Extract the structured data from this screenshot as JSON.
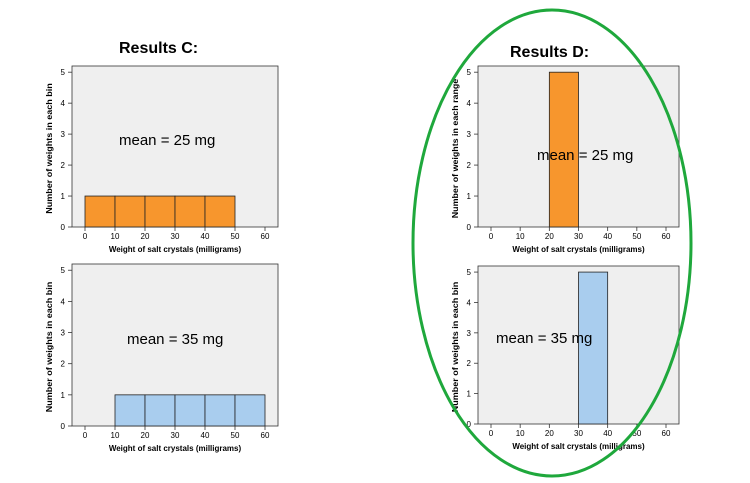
{
  "results_c_title": "Results  C:",
  "results_d_title": "Results  D:",
  "highlight_color": "#1fa83c",
  "colors": {
    "orange": "#f7962d",
    "blue": "#a9cdee",
    "plot_bg": "#efefef"
  },
  "chart_data": [
    {
      "type": "bar",
      "group": "C",
      "xlabel": "Weight of salt crystals (milligrams)",
      "ylabel": "Number of weights in each bin",
      "x_ticks": [
        "0",
        "10",
        "20",
        "30",
        "40",
        "50",
        "60"
      ],
      "y_ticks": [
        "0",
        "1",
        "2",
        "3",
        "4",
        "5"
      ],
      "xlim": [
        0,
        60
      ],
      "ylim": [
        0,
        5.2
      ],
      "bins": [
        {
          "x0": 0,
          "x1": 10,
          "count": 1
        },
        {
          "x0": 10,
          "x1": 20,
          "count": 1
        },
        {
          "x0": 20,
          "x1": 30,
          "count": 1
        },
        {
          "x0": 30,
          "x1": 40,
          "count": 1
        },
        {
          "x0": 40,
          "x1": 50,
          "count": 1
        }
      ],
      "annotation": "mean = 25 mg",
      "color": "#f7962d"
    },
    {
      "type": "bar",
      "group": "C",
      "xlabel": "Weight of salt crystals (milligrams)",
      "ylabel": "Number of weights in each bin",
      "x_ticks": [
        "0",
        "10",
        "20",
        "30",
        "40",
        "50",
        "60"
      ],
      "y_ticks": [
        "0",
        "1",
        "2",
        "3",
        "4",
        "5"
      ],
      "xlim": [
        0,
        60
      ],
      "ylim": [
        0,
        5.2
      ],
      "bins": [
        {
          "x0": 10,
          "x1": 20,
          "count": 1
        },
        {
          "x0": 20,
          "x1": 30,
          "count": 1
        },
        {
          "x0": 30,
          "x1": 40,
          "count": 1
        },
        {
          "x0": 40,
          "x1": 50,
          "count": 1
        },
        {
          "x0": 50,
          "x1": 60,
          "count": 1
        }
      ],
      "annotation": "mean = 35 mg",
      "color": "#a9cdee"
    },
    {
      "type": "bar",
      "group": "D",
      "xlabel": "Weight of salt crystals (milligrams)",
      "ylabel": "Number of weights in each range",
      "x_ticks": [
        "0",
        "10",
        "20",
        "30",
        "40",
        "50",
        "60"
      ],
      "y_ticks": [
        "0",
        "1",
        "2",
        "3",
        "4",
        "5"
      ],
      "xlim": [
        0,
        60
      ],
      "ylim": [
        0,
        5.2
      ],
      "bins": [
        {
          "x0": 20,
          "x1": 30,
          "count": 5
        }
      ],
      "annotation": "mean = 25 mg",
      "color": "#f7962d"
    },
    {
      "type": "bar",
      "group": "D",
      "xlabel": "Weight of salt crystals (milligrams)",
      "ylabel": "Number of weights in each bin",
      "x_ticks": [
        "0",
        "10",
        "20",
        "30",
        "40",
        "50",
        "60"
      ],
      "y_ticks": [
        "0",
        "1",
        "2",
        "3",
        "4",
        "5"
      ],
      "xlim": [
        0,
        60
      ],
      "ylim": [
        0,
        5.2
      ],
      "bins": [
        {
          "x0": 30,
          "x1": 40,
          "count": 5
        }
      ],
      "annotation": "mean = 35 mg",
      "color": "#a9cdee"
    }
  ]
}
